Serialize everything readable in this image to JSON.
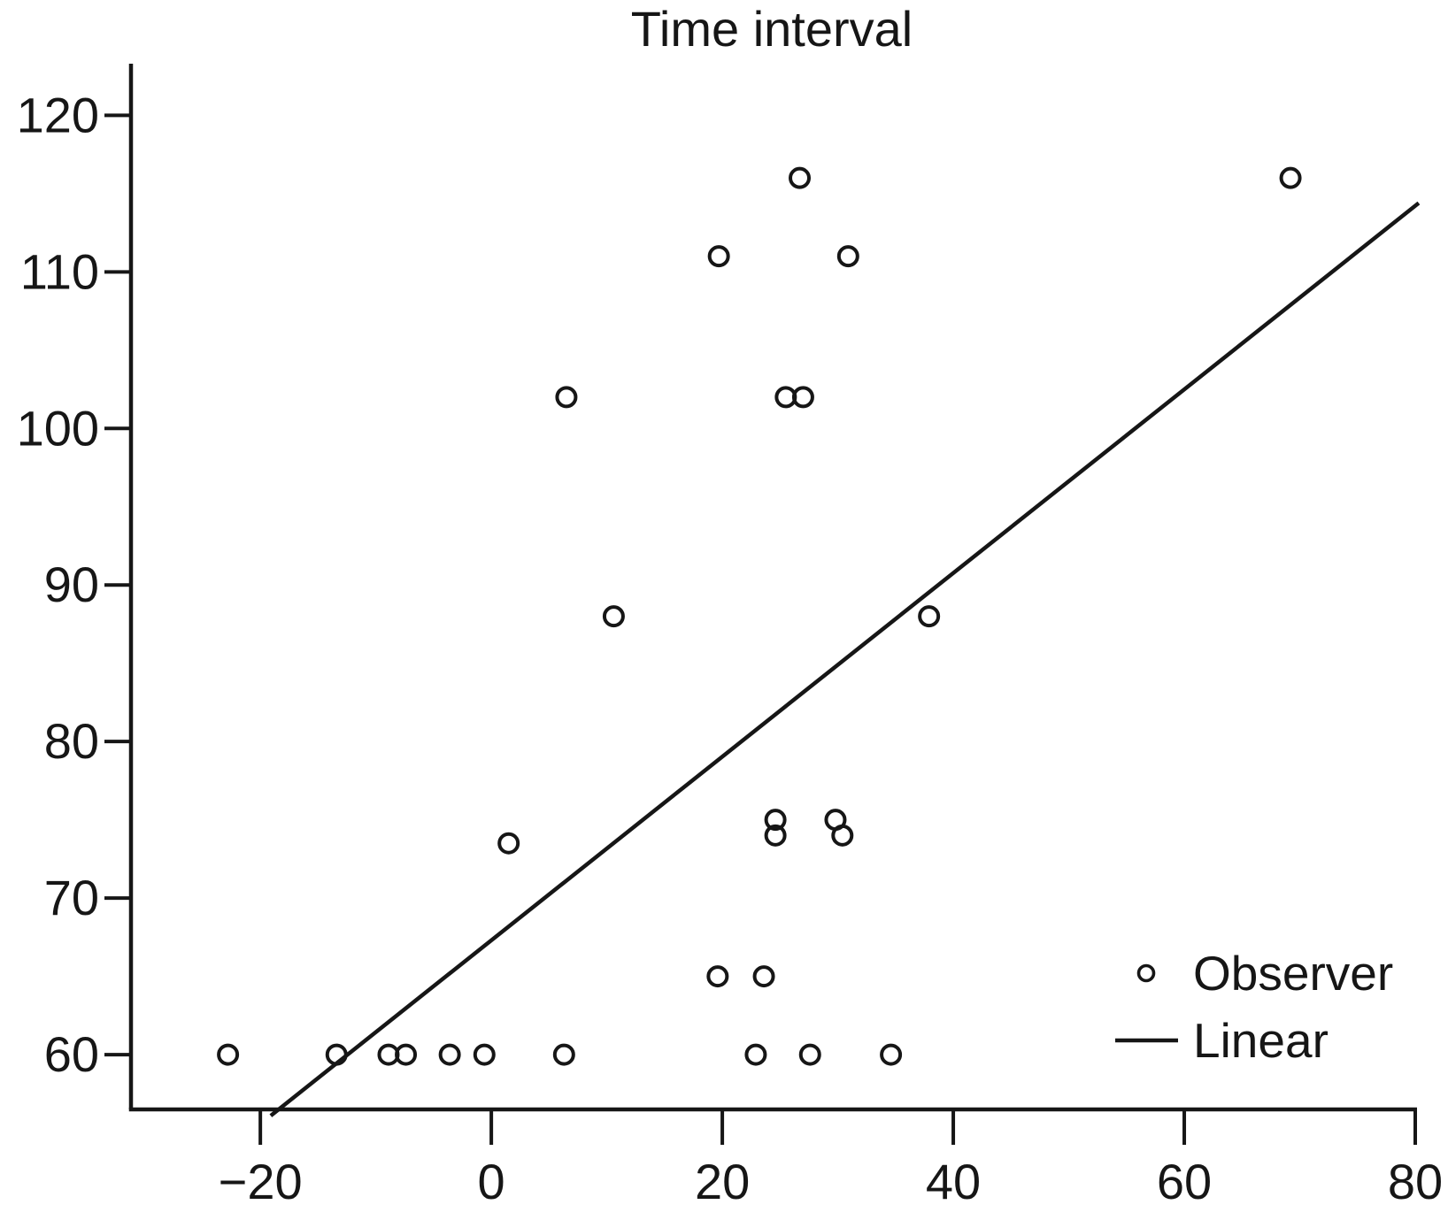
{
  "chart_data": {
    "type": "scatter",
    "title": "Time interval",
    "xlabel": "",
    "ylabel": "",
    "grid": false,
    "legend_position": "bottom-right",
    "x_axis": {
      "min": -31.2,
      "max": 80,
      "tick_values": [
        -20,
        0,
        20,
        40,
        60,
        80
      ],
      "tick_labels": [
        "−20",
        "0",
        "20",
        "40",
        "60",
        "80"
      ]
    },
    "y_axis": {
      "min": 56.5,
      "max": 123.3,
      "tick_values": [
        60,
        70,
        80,
        90,
        100,
        110,
        120
      ],
      "tick_labels": [
        "60",
        "70",
        "80",
        "90",
        "100",
        "110",
        "120"
      ]
    },
    "series": [
      {
        "name": "Observer",
        "type": "scatter",
        "marker": "open-circle",
        "color": "#161616",
        "points": [
          [
            -22.8,
            60
          ],
          [
            -13.4,
            60
          ],
          [
            -8.9,
            60
          ],
          [
            -7.4,
            60
          ],
          [
            -3.6,
            60
          ],
          [
            -0.6,
            60
          ],
          [
            6.3,
            60
          ],
          [
            22.9,
            60
          ],
          [
            27.6,
            60
          ],
          [
            34.6,
            60
          ],
          [
            19.6,
            65
          ],
          [
            23.6,
            65
          ],
          [
            1.5,
            73.5
          ],
          [
            24.6,
            74
          ],
          [
            24.6,
            75
          ],
          [
            30.4,
            74
          ],
          [
            29.8,
            75
          ],
          [
            10.6,
            88
          ],
          [
            37.9,
            88
          ],
          [
            6.5,
            102
          ],
          [
            25.5,
            102
          ],
          [
            27,
            102
          ],
          [
            19.7,
            111
          ],
          [
            30.9,
            111
          ],
          [
            26.7,
            116
          ],
          [
            69.2,
            116
          ]
        ]
      },
      {
        "name": "Linear",
        "type": "line",
        "color": "#161616",
        "from": [
          -19.1,
          56.1
        ],
        "to": [
          80.3,
          114.4
        ],
        "slope": 0.59,
        "intercept": 67.3
      }
    ]
  }
}
